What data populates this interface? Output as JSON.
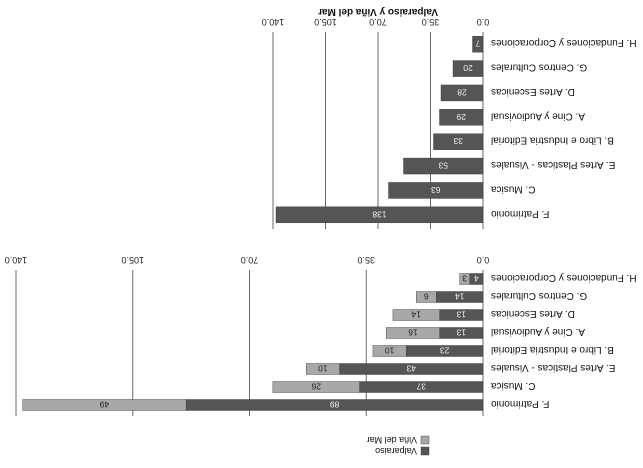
{
  "chart_data": [
    {
      "type": "bar",
      "orientation": "horizontal",
      "stacked": true,
      "title": "",
      "categories": [
        "F. Patrimonio",
        "C. Musica",
        "E. Artes Plasticas - Visuales",
        "B. Libro e Industria Editorial",
        "A. Cine y Audiovisual",
        "D. Artes Escenicas",
        "G. Centros Culturales",
        "H. Fundaciones y Corporaciones"
      ],
      "series": [
        {
          "name": "Valparaiso",
          "color": "#555555",
          "values": [
            89,
            37,
            43,
            23,
            13,
            13,
            14,
            4
          ]
        },
        {
          "name": "Viña del Mar",
          "color": "#a8a8a8",
          "values": [
            49,
            26,
            10,
            10,
            16,
            14,
            6,
            3
          ]
        }
      ],
      "xlim": [
        0,
        140
      ],
      "ticks": [
        "0.0",
        "35.0",
        "70.0",
        "105.0",
        "140.0"
      ],
      "grid": true,
      "legend": "top"
    },
    {
      "type": "bar",
      "orientation": "horizontal",
      "title": "Valparaiso y Viña del Mar",
      "categories": [
        "F. Patrimonio",
        "C. Musica",
        "E. Artes Plasticas - Visuales",
        "B. Libro e Industria Editorial",
        "A. Cine y Audiovisual",
        "D. Artes Escenicas",
        "G. Centros Culturales",
        "H. Fundaciones y Corporaciones"
      ],
      "series": [
        {
          "color": "#555555",
          "values": [
            138,
            63,
            53,
            33,
            29,
            28,
            20,
            7
          ]
        }
      ],
      "xlim": [
        0,
        140
      ],
      "ticks": [
        "0.0",
        "35.0",
        "70.0",
        "105.0",
        "140.0"
      ],
      "grid": true
    }
  ]
}
